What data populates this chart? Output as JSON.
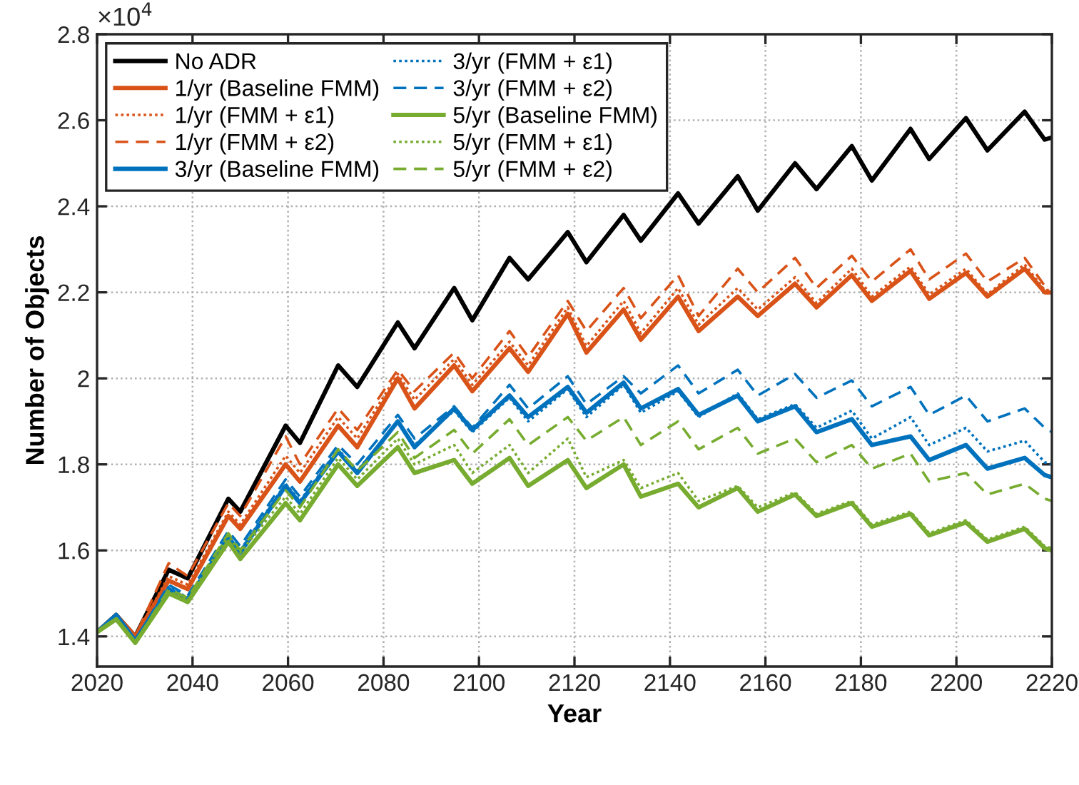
{
  "chart_data": {
    "type": "line",
    "xlabel": "Year",
    "ylabel": "Number of Objects",
    "annotations": [
      "×10$^{4}$"
    ],
    "x": [
      2020,
      2024,
      2028,
      2035,
      2039,
      2047.5,
      2050,
      2059.5,
      2062.5,
      2070.5,
      2074.5,
      2083,
      2086.5,
      2094.8,
      2098.6,
      2106.4,
      2110.3,
      2118.6,
      2122.5,
      2130.3,
      2133.9,
      2141.7,
      2146,
      2154.2,
      2158.4,
      2166.2,
      2170.7,
      2178.1,
      2182.3,
      2190.4,
      2194.3,
      2202,
      2206.5,
      2214.3,
      2218.5,
      2220
    ],
    "series": [
      {
        "name": "No ADR",
        "color": "#000000",
        "line_style": "solid",
        "values": [
          1.41,
          1.45,
          1.4,
          1.555,
          1.535,
          1.72,
          1.69,
          1.89,
          1.85,
          2.03,
          1.98,
          2.13,
          2.07,
          2.21,
          2.135,
          2.28,
          2.23,
          2.34,
          2.27,
          2.38,
          2.32,
          2.43,
          2.36,
          2.47,
          2.39,
          2.5,
          2.44,
          2.54,
          2.46,
          2.58,
          2.51,
          2.605,
          2.53,
          2.62,
          2.555,
          2.56
        ]
      },
      {
        "name": "1/yr (Baseline FMM)",
        "color": "#d95319",
        "line_style": "solid",
        "values": [
          1.41,
          1.45,
          1.4,
          1.53,
          1.51,
          1.68,
          1.65,
          1.8,
          1.76,
          1.89,
          1.84,
          2.0,
          1.93,
          2.03,
          1.97,
          2.07,
          2.015,
          2.15,
          2.06,
          2.16,
          2.09,
          2.19,
          2.11,
          2.19,
          2.145,
          2.22,
          2.165,
          2.24,
          2.18,
          2.25,
          2.185,
          2.245,
          2.19,
          2.255,
          2.2,
          2.2
        ]
      },
      {
        "name": "1/yr (FMM + ε1)",
        "color": "#d95319",
        "line_style": "dotted",
        "values": [
          1.41,
          1.45,
          1.4,
          1.54,
          1.52,
          1.69,
          1.66,
          1.82,
          1.78,
          1.91,
          1.86,
          2.01,
          1.95,
          2.045,
          1.985,
          2.085,
          2.03,
          2.165,
          2.075,
          2.18,
          2.105,
          2.21,
          2.125,
          2.21,
          2.16,
          2.235,
          2.175,
          2.255,
          2.19,
          2.26,
          2.195,
          2.255,
          2.195,
          2.265,
          2.205,
          2.205
        ]
      },
      {
        "name": "1/yr (FMM + ε2)",
        "color": "#d95319",
        "line_style": "dashed",
        "values": [
          1.41,
          1.45,
          1.4,
          1.57,
          1.54,
          1.71,
          1.68,
          1.865,
          1.8,
          1.93,
          1.88,
          2.02,
          1.97,
          2.06,
          2.0,
          2.11,
          2.05,
          2.18,
          2.11,
          2.21,
          2.14,
          2.24,
          2.145,
          2.255,
          2.2,
          2.28,
          2.21,
          2.285,
          2.225,
          2.3,
          2.23,
          2.29,
          2.225,
          2.28,
          2.215,
          2.21
        ]
      },
      {
        "name": "3/yr (Baseline FMM)",
        "color": "#0072bd",
        "line_style": "solid",
        "values": [
          1.41,
          1.45,
          1.39,
          1.51,
          1.485,
          1.63,
          1.595,
          1.75,
          1.71,
          1.83,
          1.78,
          1.9,
          1.84,
          1.93,
          1.88,
          1.96,
          1.91,
          1.98,
          1.92,
          1.99,
          1.93,
          1.975,
          1.915,
          1.96,
          1.9,
          1.935,
          1.875,
          1.905,
          1.845,
          1.865,
          1.81,
          1.845,
          1.79,
          1.815,
          1.775,
          1.77
        ]
      },
      {
        "name": "3/yr (FMM + ε1)",
        "color": "#0072bd",
        "line_style": "dotted",
        "values": [
          1.41,
          1.45,
          1.39,
          1.515,
          1.49,
          1.635,
          1.6,
          1.755,
          1.715,
          1.835,
          1.785,
          1.9,
          1.845,
          1.925,
          1.875,
          1.955,
          1.9,
          1.975,
          1.91,
          1.985,
          1.92,
          1.97,
          1.91,
          1.965,
          1.905,
          1.94,
          1.885,
          1.925,
          1.86,
          1.91,
          1.845,
          1.885,
          1.83,
          1.855,
          1.805,
          1.8
        ]
      },
      {
        "name": "3/yr (FMM + ε2)",
        "color": "#0072bd",
        "line_style": "dashed",
        "values": [
          1.41,
          1.45,
          1.39,
          1.52,
          1.495,
          1.645,
          1.61,
          1.765,
          1.725,
          1.845,
          1.8,
          1.915,
          1.86,
          1.935,
          1.885,
          1.985,
          1.93,
          2.005,
          1.94,
          2.005,
          1.965,
          2.03,
          1.965,
          2.02,
          1.96,
          2.01,
          1.955,
          1.995,
          1.935,
          1.98,
          1.915,
          1.96,
          1.9,
          1.93,
          1.885,
          1.875
        ]
      },
      {
        "name": "5/yr (Baseline FMM)",
        "color": "#77ac30",
        "line_style": "solid",
        "values": [
          1.41,
          1.44,
          1.385,
          1.5,
          1.48,
          1.62,
          1.58,
          1.71,
          1.67,
          1.8,
          1.75,
          1.84,
          1.78,
          1.81,
          1.755,
          1.815,
          1.75,
          1.81,
          1.745,
          1.8,
          1.725,
          1.755,
          1.7,
          1.745,
          1.69,
          1.73,
          1.68,
          1.71,
          1.655,
          1.685,
          1.635,
          1.665,
          1.62,
          1.65,
          1.605,
          1.6
        ]
      },
      {
        "name": "5/yr (FMM + ε1)",
        "color": "#77ac30",
        "line_style": "dotted",
        "values": [
          1.41,
          1.44,
          1.385,
          1.505,
          1.485,
          1.635,
          1.595,
          1.725,
          1.685,
          1.815,
          1.765,
          1.86,
          1.8,
          1.845,
          1.78,
          1.845,
          1.78,
          1.86,
          1.77,
          1.81,
          1.745,
          1.78,
          1.715,
          1.75,
          1.7,
          1.735,
          1.685,
          1.715,
          1.66,
          1.69,
          1.64,
          1.67,
          1.625,
          1.655,
          1.61,
          1.605
        ]
      },
      {
        "name": "5/yr (FMM + ε2)",
        "color": "#77ac30",
        "line_style": "dashed",
        "values": [
          1.41,
          1.44,
          1.385,
          1.51,
          1.49,
          1.64,
          1.6,
          1.74,
          1.7,
          1.835,
          1.785,
          1.875,
          1.815,
          1.88,
          1.825,
          1.905,
          1.845,
          1.91,
          1.855,
          1.91,
          1.845,
          1.9,
          1.835,
          1.885,
          1.825,
          1.86,
          1.805,
          1.845,
          1.79,
          1.825,
          1.76,
          1.78,
          1.73,
          1.755,
          1.72,
          1.715
        ]
      }
    ],
    "xlim": [
      2020,
      2220
    ],
    "xticks": [
      2020,
      2040,
      2060,
      2080,
      2100,
      2120,
      2140,
      2160,
      2180,
      2200,
      2220
    ],
    "ylim": [
      1.33,
      2.8
    ],
    "yticks": [
      1.4,
      1.6,
      1.8,
      2,
      2.2,
      2.4,
      2.6,
      2.8
    ],
    "grid": true,
    "legend": "top left",
    "marker": "none"
  }
}
